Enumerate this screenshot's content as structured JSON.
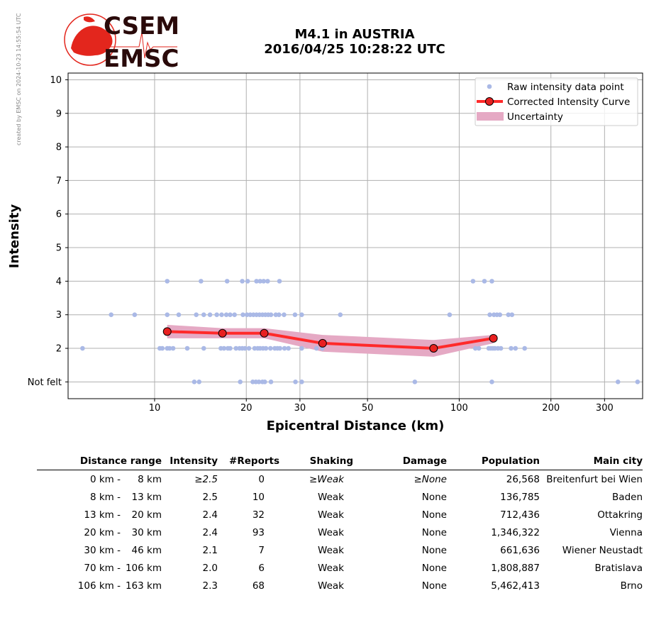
{
  "watermark": "created by EMSC on 2024-10-23 14:55:54 UTC",
  "logo": {
    "top": "CSEM",
    "bottom": "EMSC",
    "color": "#e3261d",
    "text_color": "#2a0a0a"
  },
  "title": {
    "line1": "M4.1 in AUSTRIA",
    "line2": "2016/04/25 10:28:22 UTC"
  },
  "chart_data": {
    "type": "scatter",
    "xlabel": "Epicentral Distance (km)",
    "ylabel": "Intensity",
    "x_scale": "log",
    "xlim": [
      5.2,
      400
    ],
    "ylim": [
      0.5,
      10.2
    ],
    "x_ticks": [
      10,
      20,
      30,
      50,
      100,
      200,
      300
    ],
    "y_ticks": [
      {
        "v": 1,
        "label": "Not felt"
      },
      {
        "v": 2,
        "label": "2"
      },
      {
        "v": 3,
        "label": "3"
      },
      {
        "v": 4,
        "label": "4"
      },
      {
        "v": 5,
        "label": "5"
      },
      {
        "v": 6,
        "label": "6"
      },
      {
        "v": 7,
        "label": "7"
      },
      {
        "v": 8,
        "label": "8"
      },
      {
        "v": 9,
        "label": "9"
      },
      {
        "v": 10,
        "label": "10"
      }
    ],
    "grid": true,
    "legend_position": "top-right",
    "colors": {
      "raw": "#aab9e6",
      "curve": "#ff2a2a",
      "uncertainty": "#e5a9c4",
      "marker_fill": "#e82020"
    },
    "legend": [
      "Raw intensity data point",
      "Corrected Intensity Curve",
      "Uncertainty"
    ],
    "raw_points": [
      [
        5.8,
        2
      ],
      [
        10.4,
        2
      ],
      [
        10.6,
        2
      ],
      [
        11,
        2
      ],
      [
        11.2,
        2
      ],
      [
        11.5,
        2
      ],
      [
        12.8,
        2
      ],
      [
        14.5,
        2
      ],
      [
        16.5,
        2
      ],
      [
        16.9,
        2
      ],
      [
        17.4,
        2
      ],
      [
        17.7,
        2
      ],
      [
        18.5,
        2
      ],
      [
        19,
        2
      ],
      [
        19.4,
        2
      ],
      [
        19.8,
        2
      ],
      [
        20.4,
        2
      ],
      [
        21.3,
        2
      ],
      [
        21.8,
        2
      ],
      [
        22.2,
        2
      ],
      [
        22.7,
        2
      ],
      [
        23.2,
        2
      ],
      [
        24,
        2
      ],
      [
        24.8,
        2
      ],
      [
        25.3,
        2
      ],
      [
        25.8,
        2
      ],
      [
        26.7,
        2
      ],
      [
        27.5,
        2
      ],
      [
        30.4,
        2
      ],
      [
        34,
        2
      ],
      [
        35.5,
        2
      ],
      [
        113,
        2
      ],
      [
        116,
        2
      ],
      [
        125,
        2
      ],
      [
        127,
        2
      ],
      [
        129,
        2
      ],
      [
        131,
        2
      ],
      [
        134,
        2
      ],
      [
        137,
        2
      ],
      [
        148,
        2
      ],
      [
        153,
        2
      ],
      [
        164,
        2
      ],
      [
        7.2,
        3
      ],
      [
        8.6,
        3
      ],
      [
        11,
        3
      ],
      [
        12,
        3
      ],
      [
        13.7,
        3
      ],
      [
        14.5,
        3
      ],
      [
        15.2,
        3
      ],
      [
        16,
        3
      ],
      [
        16.6,
        3
      ],
      [
        17.2,
        3
      ],
      [
        17.7,
        3
      ],
      [
        18.3,
        3
      ],
      [
        19.5,
        3
      ],
      [
        20.1,
        3
      ],
      [
        20.6,
        3
      ],
      [
        21.1,
        3
      ],
      [
        21.6,
        3
      ],
      [
        22.1,
        3
      ],
      [
        22.6,
        3
      ],
      [
        23.1,
        3
      ],
      [
        23.6,
        3
      ],
      [
        24.1,
        3
      ],
      [
        25,
        3
      ],
      [
        25.6,
        3
      ],
      [
        26.6,
        3
      ],
      [
        28.9,
        3
      ],
      [
        30.4,
        3
      ],
      [
        40.7,
        3
      ],
      [
        93,
        3
      ],
      [
        126,
        3
      ],
      [
        130,
        3
      ],
      [
        133,
        3
      ],
      [
        136,
        3
      ],
      [
        145,
        3
      ],
      [
        149,
        3
      ],
      [
        11,
        4
      ],
      [
        14.2,
        4
      ],
      [
        17.3,
        4
      ],
      [
        19.4,
        4
      ],
      [
        20.2,
        4
      ],
      [
        21.6,
        4
      ],
      [
        22.2,
        4
      ],
      [
        22.8,
        4
      ],
      [
        23.5,
        4
      ],
      [
        25.7,
        4
      ],
      [
        111,
        4
      ],
      [
        121,
        4
      ],
      [
        128,
        4
      ],
      [
        13.5,
        1
      ],
      [
        14,
        1
      ],
      [
        19.1,
        1
      ],
      [
        21,
        1
      ],
      [
        21.5,
        1
      ],
      [
        22,
        1
      ],
      [
        22.6,
        1
      ],
      [
        23,
        1
      ],
      [
        24.1,
        1
      ],
      [
        29,
        1
      ],
      [
        30.4,
        1
      ],
      [
        71.5,
        1
      ],
      [
        128,
        1
      ],
      [
        332,
        1
      ],
      [
        385,
        1
      ]
    ],
    "curve": [
      [
        11,
        2.5
      ],
      [
        16.7,
        2.45
      ],
      [
        22.9,
        2.45
      ],
      [
        35.6,
        2.15
      ],
      [
        82.4,
        2.0
      ],
      [
        129.5,
        2.3
      ]
    ],
    "uncertainty_upper": [
      [
        11,
        2.7
      ],
      [
        16.7,
        2.6
      ],
      [
        22.9,
        2.6
      ],
      [
        35.6,
        2.4
      ],
      [
        82.4,
        2.25
      ],
      [
        129.5,
        2.4
      ]
    ],
    "uncertainty_lower": [
      [
        11,
        2.3
      ],
      [
        16.7,
        2.3
      ],
      [
        22.9,
        2.3
      ],
      [
        35.6,
        1.9
      ],
      [
        82.4,
        1.75
      ],
      [
        129.5,
        2.15
      ]
    ]
  },
  "table": {
    "headers": [
      "Distance range",
      "Intensity",
      "#Reports",
      "Shaking",
      "Damage",
      "Population",
      "Main city"
    ],
    "rows": [
      {
        "dist_from": "0 km -",
        "dist_to": "8 km",
        "intensity": "≥2.5",
        "reports": "0",
        "shaking": "≥Weak",
        "damage": "≥None",
        "population": "26,568",
        "city": "Breitenfurt bei Wien",
        "italic": true
      },
      {
        "dist_from": "8 km -",
        "dist_to": "13 km",
        "intensity": "2.5",
        "reports": "10",
        "shaking": "Weak",
        "damage": "None",
        "population": "136,785",
        "city": "Baden",
        "italic": false
      },
      {
        "dist_from": "13 km -",
        "dist_to": "20 km",
        "intensity": "2.4",
        "reports": "32",
        "shaking": "Weak",
        "damage": "None",
        "population": "712,436",
        "city": "Ottakring",
        "italic": false
      },
      {
        "dist_from": "20 km -",
        "dist_to": "30 km",
        "intensity": "2.4",
        "reports": "93",
        "shaking": "Weak",
        "damage": "None",
        "population": "1,346,322",
        "city": "Vienna",
        "italic": false
      },
      {
        "dist_from": "30 km -",
        "dist_to": "46 km",
        "intensity": "2.1",
        "reports": "7",
        "shaking": "Weak",
        "damage": "None",
        "population": "661,636",
        "city": "Wiener Neustadt",
        "italic": false
      },
      {
        "dist_from": "70 km -",
        "dist_to": "106 km",
        "intensity": "2.0",
        "reports": "6",
        "shaking": "Weak",
        "damage": "None",
        "population": "1,808,887",
        "city": "Bratislava",
        "italic": false
      },
      {
        "dist_from": "106 km -",
        "dist_to": "163 km",
        "intensity": "2.3",
        "reports": "68",
        "shaking": "Weak",
        "damage": "None",
        "population": "5,462,413",
        "city": "Brno",
        "italic": false
      }
    ]
  }
}
